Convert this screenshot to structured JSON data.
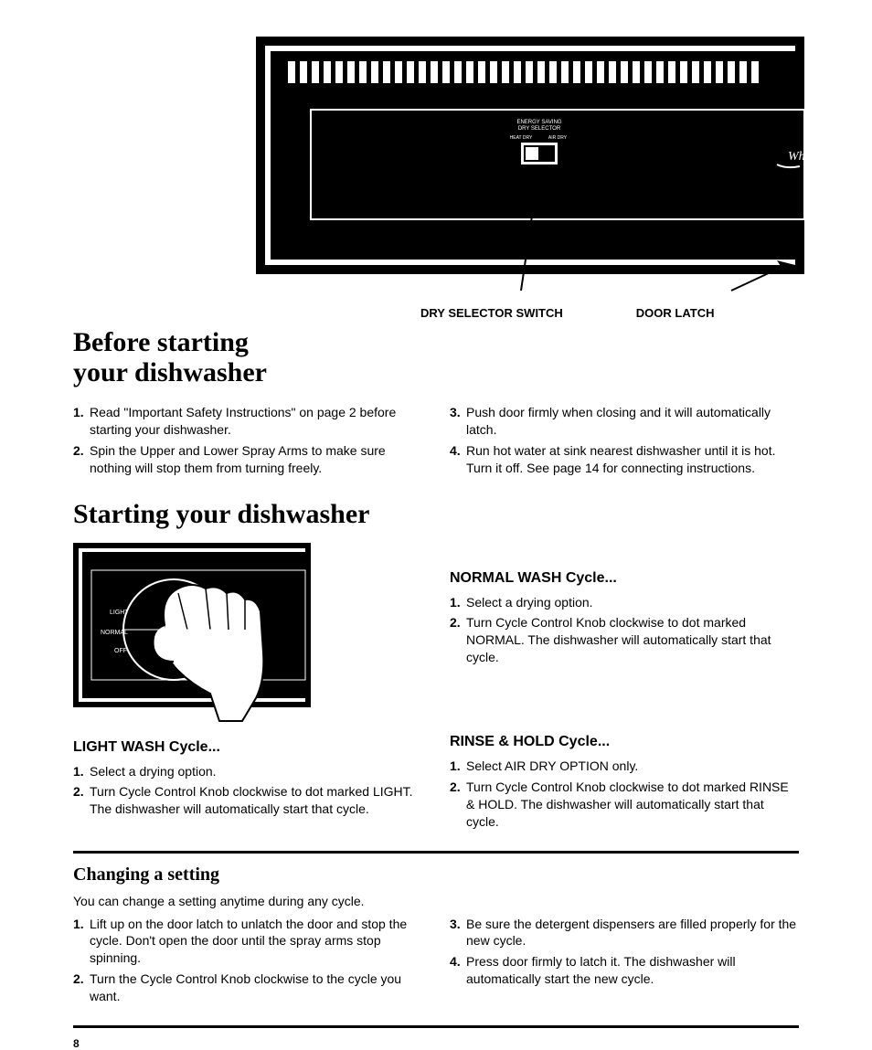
{
  "labels": {
    "dry_selector": "DRY SELECTOR SWITCH",
    "door_latch": "DOOR LATCH"
  },
  "heading_before": "Before starting your dishwasher",
  "before_list_left": [
    {
      "n": "1.",
      "text": "Read \"Important Safety Instructions\" on page 2 before starting your dishwasher."
    },
    {
      "n": "2.",
      "text": "Spin the Upper and Lower Spray Arms to make sure nothing will stop them from turning freely."
    }
  ],
  "before_list_right": [
    {
      "n": "3.",
      "text": "Push door firmly when closing and it will automatically latch."
    },
    {
      "n": "4.",
      "text": "Run hot water at sink nearest dishwasher until it is hot. Turn it off. See page 14 for connecting instructions."
    }
  ],
  "heading_starting": "Starting your dishwasher",
  "normal_wash": {
    "title": "NORMAL WASH Cycle...",
    "items": [
      {
        "n": "1.",
        "text": "Select a drying option."
      },
      {
        "n": "2.",
        "text": "Turn Cycle Control Knob clockwise to dot marked NORMAL. The dishwasher will automatically start that cycle."
      }
    ]
  },
  "light_wash": {
    "title": "LIGHT WASH Cycle...",
    "items": [
      {
        "n": "1.",
        "text": "Select a drying option."
      },
      {
        "n": "2.",
        "text": "Turn Cycle Control Knob clockwise to dot marked LIGHT. The dishwasher will automatically start that cycle."
      }
    ]
  },
  "rinse_hold": {
    "title": "RINSE & HOLD Cycle...",
    "items": [
      {
        "n": "1.",
        "text": "Select AIR DRY OPTION only."
      },
      {
        "n": "2.",
        "text": "Turn Cycle Control Knob clockwise to dot marked RINSE & HOLD. The dishwasher will automatically start that cycle."
      }
    ]
  },
  "changing": {
    "title": "Changing a setting",
    "intro": "You can change a setting anytime during any cycle.",
    "left": [
      {
        "n": "1.",
        "text": "Lift up on the door latch to unlatch the door and stop the cycle. Don't open the door until the spray arms stop spinning."
      },
      {
        "n": "2.",
        "text": "Turn the Cycle Control Knob clockwise to the cycle you want."
      }
    ],
    "right": [
      {
        "n": "3.",
        "text": "Be sure the detergent dispensers are filled properly for the new cycle."
      },
      {
        "n": "4.",
        "text": "Press door firmly to latch it. The dishwasher will automatically start the new cycle."
      }
    ]
  },
  "panel": {
    "switch_label_top": "ENERGY SAVING",
    "switch_label_mid": "DRY SELECTOR",
    "switch_label_left": "HEAT DRY",
    "switch_label_right": "AIR DRY",
    "brand": "Whi"
  },
  "knob": {
    "light": "LIGHT",
    "normal": "NORMAL",
    "off": "OFF"
  },
  "page_number": "8",
  "colors": {
    "black": "#000000",
    "white": "#ffffff"
  }
}
